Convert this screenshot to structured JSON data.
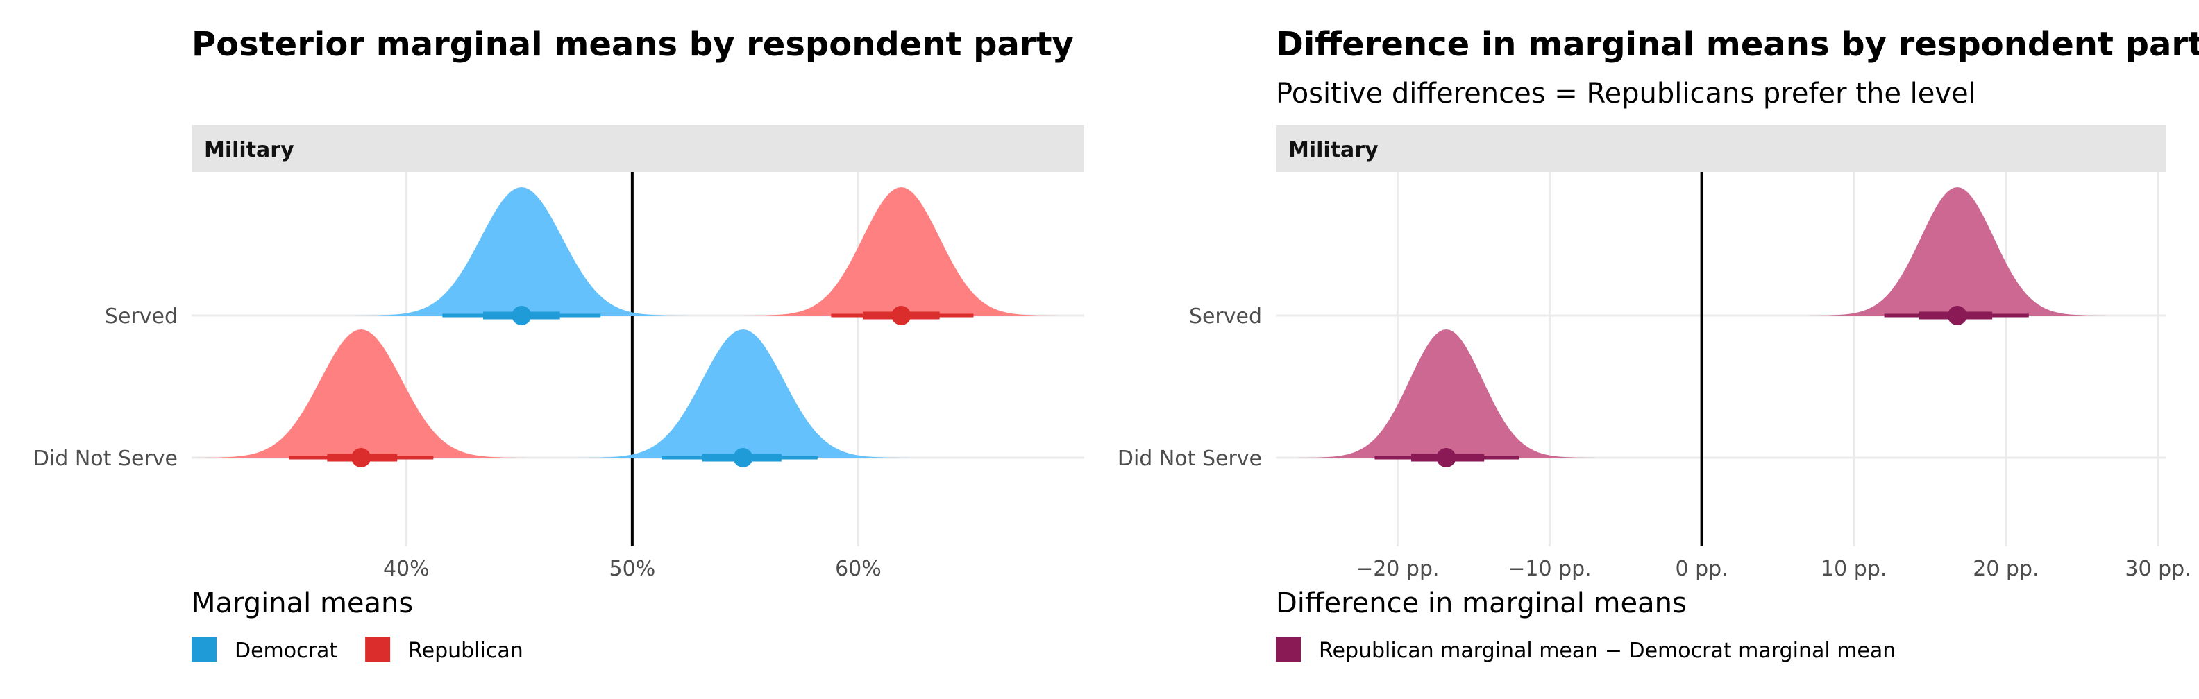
{
  "chart_data": [
    {
      "type": "density-ridge",
      "title": "Posterior marginal means by respondent party",
      "subtitle": "",
      "facet": "Military",
      "categories": [
        "Served",
        "Did Not Serve"
      ],
      "x_ticks": [
        0.4,
        0.5,
        0.6
      ],
      "x_tick_labels": [
        "40%",
        "50%",
        "60%"
      ],
      "xlim": [
        0.305,
        0.7
      ],
      "reference_line": 0.5,
      "grid": true,
      "legend_title": "Marginal means",
      "legend_position": "bottom-left",
      "legend": [
        {
          "name": "Democrat",
          "color": "#1f9bd8"
        },
        {
          "name": "Republican",
          "color": "#dc2d2d"
        }
      ],
      "series": [
        {
          "name": "Democrat",
          "category": "Served",
          "mean": 0.451,
          "sd": 0.018,
          "interval_66": [
            0.434,
            0.468
          ],
          "interval_95": [
            0.416,
            0.486
          ],
          "fill": "#64c1fb",
          "point": "#1f9bd8"
        },
        {
          "name": "Republican",
          "category": "Served",
          "mean": 0.619,
          "sd": 0.017,
          "interval_66": [
            0.602,
            0.636
          ],
          "interval_95": [
            0.588,
            0.651
          ],
          "fill": "#ff8080",
          "point": "#dc2d2d"
        },
        {
          "name": "Republican",
          "category": "Did Not Serve",
          "mean": 0.38,
          "sd": 0.018,
          "interval_66": [
            0.365,
            0.396
          ],
          "interval_95": [
            0.348,
            0.412
          ],
          "fill": "#ff8080",
          "point": "#dc2d2d"
        },
        {
          "name": "Democrat",
          "category": "Did Not Serve",
          "mean": 0.549,
          "sd": 0.018,
          "interval_66": [
            0.531,
            0.566
          ],
          "interval_95": [
            0.513,
            0.582
          ],
          "fill": "#64c1fb",
          "point": "#1f9bd8"
        }
      ]
    },
    {
      "type": "density-ridge",
      "title": "Difference in marginal means by respondent party",
      "subtitle": "Positive differences = Republicans prefer the level",
      "facet": "Military",
      "categories": [
        "Served",
        "Did Not Serve"
      ],
      "x_ticks": [
        -20,
        -10,
        0,
        10,
        20,
        30
      ],
      "x_tick_labels": [
        "−20 pp.",
        "−10 pp.",
        "0 pp.",
        "10 pp.",
        "20 pp.",
        "30 pp."
      ],
      "xlim": [
        -28,
        30.5
      ],
      "reference_line": 0,
      "grid": true,
      "legend_title": "Difference in marginal means",
      "legend_position": "bottom-left",
      "legend": [
        {
          "name": "Republican marginal mean − Democrat marginal mean",
          "color": "#8a1a55"
        }
      ],
      "series": [
        {
          "name": "Republican marginal mean − Democrat marginal mean",
          "category": "Served",
          "mean": 16.8,
          "sd": 2.4,
          "interval_66": [
            14.3,
            19.1
          ],
          "interval_95": [
            12.0,
            21.5
          ],
          "fill": "#cc6891",
          "point": "#8a1a55"
        },
        {
          "name": "Republican marginal mean − Democrat marginal mean",
          "category": "Did Not Serve",
          "mean": -16.8,
          "sd": 2.4,
          "interval_66": [
            -19.1,
            -14.3
          ],
          "interval_95": [
            -21.5,
            -12.0
          ],
          "fill": "#cc6891",
          "point": "#8a1a55"
        }
      ]
    }
  ]
}
